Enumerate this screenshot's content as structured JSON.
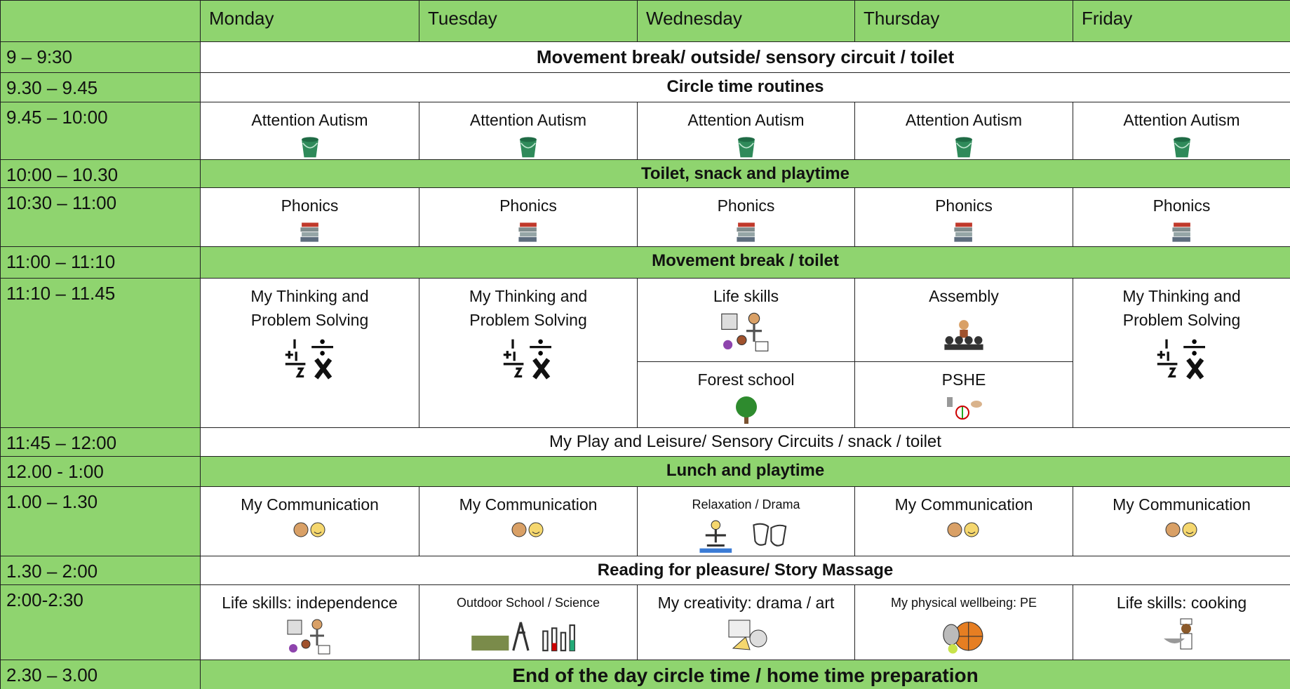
{
  "days": [
    "Monday",
    "Tuesday",
    "Wednesday",
    "Thursday",
    "Friday"
  ],
  "rows": [
    {
      "time": "9 – 9:30",
      "activity": "Movement break/ outside/ sensory circuit / toilet"
    },
    {
      "time": "9.30 – 9.45",
      "activity": "Circle time routines"
    },
    {
      "time": "9.45 – 10:00",
      "cells": [
        [
          "Attention Autism"
        ],
        [
          "Attention Autism"
        ],
        [
          "Attention Autism"
        ],
        [
          "Attention Autism"
        ],
        [
          "Attention Autism"
        ]
      ]
    },
    {
      "time": "10:00 – 10.30",
      "activity": "Toilet, snack and playtime"
    },
    {
      "time": "10:30 – 11:00",
      "cells": [
        [
          "Phonics"
        ],
        [
          "Phonics"
        ],
        [
          "Phonics"
        ],
        [
          "Phonics"
        ],
        [
          "Phonics"
        ]
      ]
    },
    {
      "time": "11:00 – 11:10",
      "activity": "Movement break / toilet"
    },
    {
      "time": "11:10 – 11.45",
      "cells": [
        [
          "My Thinking and Problem Solving"
        ],
        [
          "My Thinking and Problem Solving"
        ],
        [
          "Life skills",
          "Forest school"
        ],
        [
          "Assembly",
          "PSHE"
        ],
        [
          "My Thinking and Problem Solving"
        ]
      ]
    },
    {
      "time": "11:45 – 12:00",
      "activity": "My Play and Leisure/ Sensory Circuits / snack / toilet"
    },
    {
      "time": "12.00 - 1:00",
      "activity": "Lunch and playtime"
    },
    {
      "time": "1.00 – 1.30",
      "cells": [
        [
          "My Communication"
        ],
        [
          "My Communication"
        ],
        [
          "Relaxation / Drama"
        ],
        [
          "My Communication"
        ],
        [
          "My Communication"
        ]
      ]
    },
    {
      "time": "1.30 – 2:00",
      "activity": "Reading for pleasure/ Story Massage"
    },
    {
      "time": "2:00-2:30",
      "cells": [
        [
          "Life skills: independence"
        ],
        [
          "Outdoor School / Science"
        ],
        [
          "My creativity: drama / art"
        ],
        [
          "My physical wellbeing: PE"
        ],
        [
          "Life skills: cooking"
        ]
      ]
    },
    {
      "time": "2.30 – 3.00",
      "activity": "End of the day circle time / home time preparation"
    }
  ]
}
